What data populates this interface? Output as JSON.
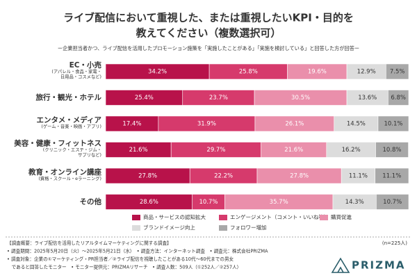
{
  "chart_data": {
    "type": "stacked-bar-horizontal",
    "title": [
      "ライブ配信において重視した、または重視したいKPI・目的を",
      "教えてください（複数選択可）"
    ],
    "subtitle": "ー企業担当者かつ、ライブ配信を活用したプロモーション施策を「実施したことがある」「実施を検討している」と回答した方が回答ー",
    "categories": [
      "EC・小売",
      "旅行・観光・ホテル",
      "エンタメ・メディア",
      "美容・健康・フィットネス",
      "教育・オンライン講座",
      "その他"
    ],
    "category_notes": [
      [
        "(アパレル・食品・家電・",
        "日用品・コスメなど)"
      ],
      null,
      [
        "(ゲーム・音楽・映画・アプリ)"
      ],
      [
        "(クリニック・エステ・ジム・",
        "サプリなど)"
      ],
      [
        "(資格・スクール・eラーニング)"
      ],
      null
    ],
    "xlim": [
      0,
      100
    ],
    "series": [
      {
        "name": "商品・サービスの認知拡大",
        "color": "#b8124a",
        "values": [
          34.2,
          25.4,
          17.4,
          21.6,
          27.8,
          28.6
        ],
        "value_labels": [
          "34.2%",
          "25.4%",
          "17.4%",
          "21.6%",
          "27.8%",
          "28.6%"
        ]
      },
      {
        "name": "エンゲージメント（コメント・いいね等）",
        "color": "#d63a6c",
        "values": [
          25.8,
          23.7,
          31.9,
          29.7,
          22.2,
          10.7
        ],
        "value_labels": [
          "25.8%",
          "23.7%",
          "31.9%",
          "29.7%",
          "22.2%",
          "10.7%"
        ]
      },
      {
        "name": "購買促進",
        "color": "#ea8fab",
        "values": [
          19.6,
          30.5,
          26.1,
          21.6,
          27.8,
          35.7
        ],
        "value_labels": [
          "19.6%",
          "30.5%",
          "26.1%",
          "21.6%",
          "27.8%",
          "35.7%"
        ]
      },
      {
        "name": "ブランドイメージ向上",
        "color": "#dcdcdc",
        "values": [
          12.9,
          13.6,
          14.5,
          16.2,
          11.1,
          14.3
        ],
        "value_labels": [
          "12.9%",
          "13.6%",
          "14.5%",
          "16.2%",
          "11.1%",
          "14.3%"
        ]
      },
      {
        "name": "フォロワー増加",
        "color": "#a8a8a8",
        "values": [
          7.5,
          6.8,
          10.1,
          10.8,
          11.1,
          10.7
        ],
        "value_labels": [
          "7.5%",
          "6.8%",
          "10.1%",
          "10.8%",
          "11.1%",
          "10.7%"
        ]
      }
    ],
    "sample": "(n=225人)",
    "notes": [
      "【調査概要：ライブ配信を活用したリアルタイムマーケティングに関する調査】",
      "• 調査期間：2025年5月20日（火）〜2025年5月21日（水）　• 調査方法：インターネット調査　• 調査元：株式会社PRIZMA",
      "• 調査対象：企業の①マーケティング・PR担当者／②ライブ配信を視聴したことがある10代〜60代までの男女",
      "　であると回答したモニター　• モニター提供元：PRIZMAリサーチ　• 調査人数：509人（①252人／②257人）"
    ],
    "brand": "PRIZMA"
  }
}
